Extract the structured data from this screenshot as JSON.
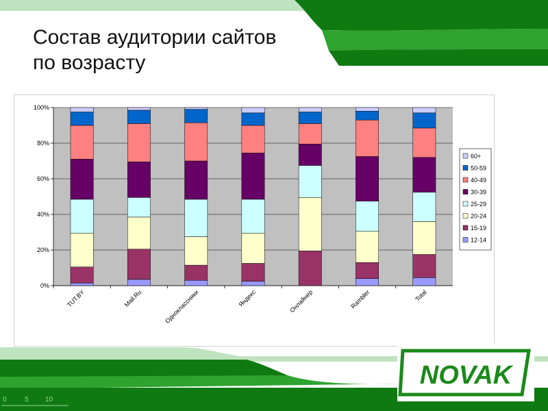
{
  "title": {
    "line1": "Состав аудитории сайтов",
    "line2": "по возрасту"
  },
  "logo": {
    "text": "NOVAK",
    "color": "#1a8a1a"
  },
  "ruler": {
    "ticks": [
      "0",
      "5",
      "10"
    ]
  },
  "colors": {
    "green_dark": "#0f7a12",
    "green_mid": "#2ea32e",
    "green_light": "#bfe3bf",
    "plot_bg": "#c0c0c0"
  },
  "chart_data": {
    "type": "bar",
    "stacked": true,
    "percent": true,
    "categories": [
      "TUT.BY",
      "Mail.Ru",
      "Одноклассники",
      "Яндекс",
      "Онлайнер",
      "Rambler",
      "Total"
    ],
    "yticks": [
      "0%",
      "20%",
      "40%",
      "60%",
      "80%",
      "100%"
    ],
    "ylim": [
      0,
      100
    ],
    "grid": true,
    "legend_position": "right",
    "series": [
      {
        "name": "12-14",
        "color": "#9999ff",
        "values": [
          1.5,
          3.5,
          3,
          2.5,
          0,
          4,
          4.5
        ]
      },
      {
        "name": "15-19",
        "color": "#993366",
        "values": [
          9,
          17,
          8.5,
          10,
          19.5,
          9,
          13
        ]
      },
      {
        "name": "20-24",
        "color": "#ffffcc",
        "values": [
          19,
          18,
          16,
          17,
          30,
          17.5,
          18.5
        ]
      },
      {
        "name": "25-29",
        "color": "#ccffff",
        "values": [
          19,
          11,
          21,
          19,
          18,
          17,
          16.5
        ]
      },
      {
        "name": "30-39",
        "color": "#660066",
        "values": [
          22.5,
          20,
          21.5,
          26,
          12,
          25,
          19.5
        ]
      },
      {
        "name": "40-49",
        "color": "#ff8080",
        "values": [
          19,
          21.5,
          21.5,
          15.5,
          11.5,
          20.5,
          16.5
        ]
      },
      {
        "name": "50-59",
        "color": "#0066cc",
        "values": [
          7.5,
          7.5,
          7.5,
          7,
          6.5,
          5,
          8.5
        ]
      },
      {
        "name": "60+",
        "color": "#ccccff",
        "values": [
          2.5,
          1.5,
          1,
          3,
          2.5,
          2,
          3
        ]
      }
    ]
  }
}
